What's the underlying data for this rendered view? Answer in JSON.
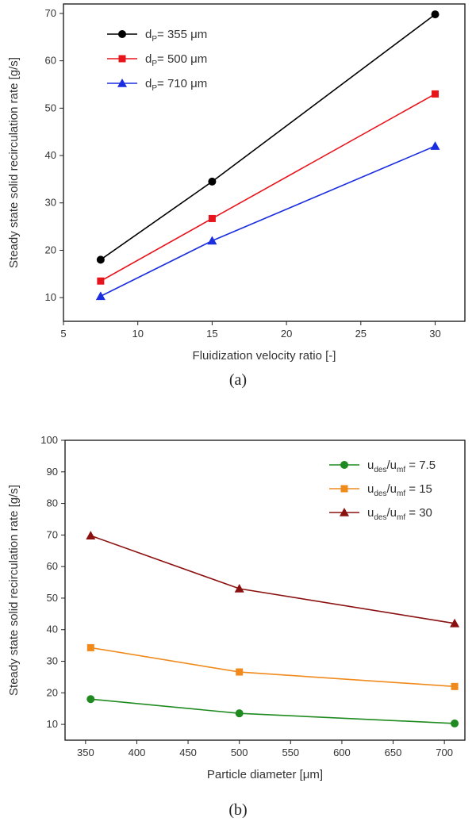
{
  "chart_data": [
    {
      "type": "line",
      "panel_label": "(a)",
      "xlabel": "Fluidization velocity ratio [-]",
      "ylabel": "Steady state solid recirculation rate [g/s]",
      "xlim": [
        5,
        32
      ],
      "ylim": [
        5,
        72
      ],
      "xticks": [
        5,
        10,
        15,
        20,
        25,
        30
      ],
      "yticks": [
        10,
        20,
        30,
        40,
        50,
        60,
        70
      ],
      "x": [
        7.5,
        15,
        30
      ],
      "grid": false,
      "legend_position": "top-left",
      "series": [
        {
          "name": "dP= 355 μm",
          "name_main": "d",
          "name_sub": "P",
          "name_rest": "= 355 μm",
          "color": "#000000",
          "marker": "circle",
          "values": [
            18,
            34.5,
            69.8
          ]
        },
        {
          "name": "dP= 500 μm",
          "name_main": "d",
          "name_sub": "P",
          "name_rest": "= 500 μm",
          "color": "#e8141c",
          "marker": "square",
          "values": [
            13.5,
            26.7,
            53
          ]
        },
        {
          "name": "dP= 710 μm",
          "name_main": "d",
          "name_sub": "P",
          "name_rest": "= 710 μm",
          "color": "#1a2ee0",
          "marker": "triangle",
          "values": [
            10.3,
            22,
            42
          ]
        }
      ]
    },
    {
      "type": "line",
      "panel_label": "(b)",
      "xlabel": "Particle diameter [μm]",
      "ylabel": "Steady state solid recirculation rate [g/s]",
      "xlim": [
        330,
        720
      ],
      "ylim": [
        5,
        100
      ],
      "xticks": [
        350,
        400,
        450,
        500,
        550,
        600,
        650,
        700
      ],
      "yticks": [
        10,
        20,
        30,
        40,
        50,
        60,
        70,
        80,
        90,
        100
      ],
      "x": [
        355,
        500,
        710
      ],
      "grid": false,
      "legend_position": "top-right",
      "series": [
        {
          "name": "udes/umf = 7.5",
          "name_parts": [
            "u",
            "des",
            "/u",
            "mf",
            " = 7.5"
          ],
          "color": "#1f8a1f",
          "marker": "circle",
          "values": [
            18,
            13.5,
            10.3
          ]
        },
        {
          "name": "udes/umf = 15",
          "name_parts": [
            "u",
            "des",
            "/u",
            "mf",
            " = 15"
          ],
          "color": "#f08a1c",
          "marker": "square",
          "values": [
            34.3,
            26.6,
            22
          ]
        },
        {
          "name": "udes/umf = 30",
          "name_parts": [
            "u",
            "des",
            "/u",
            "mf",
            " = 30"
          ],
          "color": "#8b1010",
          "marker": "triangle",
          "values": [
            69.8,
            53,
            42
          ]
        }
      ]
    }
  ]
}
